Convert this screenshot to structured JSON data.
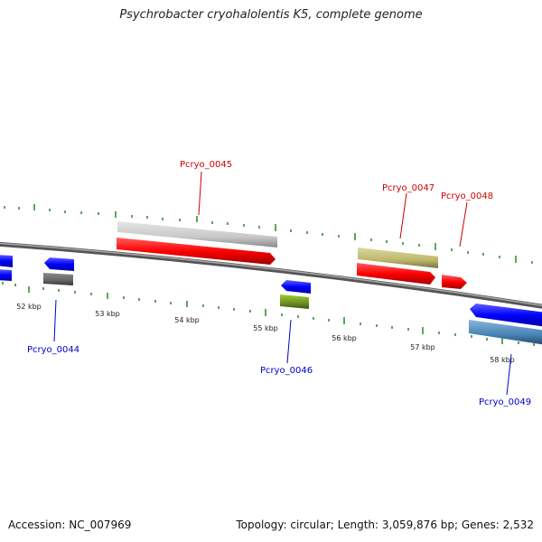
{
  "header": {
    "title": "Psychrobacter cryohalolentis K5, complete genome"
  },
  "footer": {
    "accession": "Accession: NC_007969",
    "summary": "Topology: circular; Length: 3,059,876 bp; Genes: 2,532"
  },
  "scale_labels": [
    "52 kbp",
    "53 kbp",
    "54 kbp",
    "55 kbp",
    "56 kbp",
    "57 kbp",
    "58 kbp"
  ],
  "genes": [
    {
      "id": "Pcryo_0044",
      "strand": "reverse",
      "label_color": "#0000cc",
      "feature_color": "#666666"
    },
    {
      "id": "Pcryo_0045",
      "strand": "forward",
      "label_color": "#cc0000",
      "feature_color": "#c8c8c8"
    },
    {
      "id": "Pcryo_0046",
      "strand": "reverse",
      "label_color": "#0000cc",
      "feature_color": "#6b8e23"
    },
    {
      "id": "Pcryo_0047",
      "strand": "forward",
      "label_color": "#cc0000",
      "feature_color": "#bdb76b"
    },
    {
      "id": "Pcryo_0048",
      "strand": "forward",
      "label_color": "#cc0000",
      "feature_color": "#ff0000"
    },
    {
      "id": "Pcryo_0049",
      "strand": "reverse",
      "label_color": "#0000cc",
      "feature_color": "#4682b4"
    }
  ],
  "colors": {
    "backbone": "#808080",
    "forward_cds": "#ff0000",
    "reverse_cds": "#0000ff",
    "tick": "#228b22"
  }
}
